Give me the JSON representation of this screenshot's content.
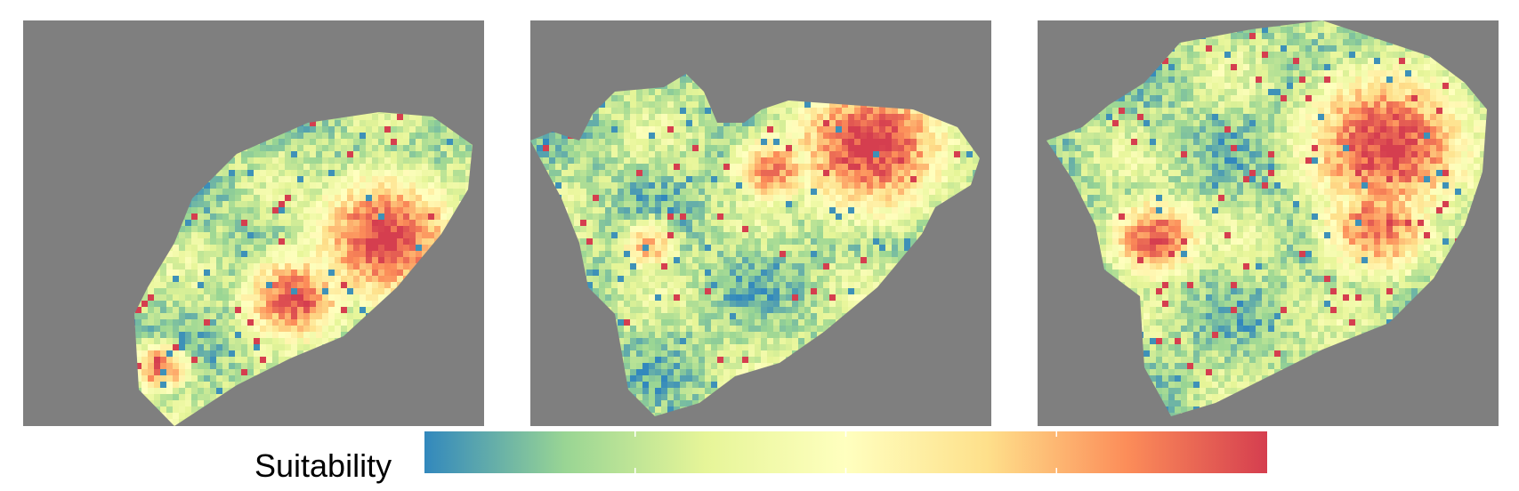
{
  "chart_data": {
    "type": "heatmap",
    "description_of_panels": [
      "map-1",
      "map-2",
      "map-3"
    ],
    "value_range": [
      0,
      1
    ],
    "background_color": "#7f7f7f",
    "legend": {
      "title": "Suitability",
      "placement": "bottom",
      "palette": [
        "#3288bd",
        "#99d594",
        "#e6f598",
        "#ffffbf",
        "#fee08b",
        "#fc8d59",
        "#d53e4f"
      ]
    },
    "panels": [
      {
        "low_suitability_fraction": 0.55,
        "high_suitability_fraction": 0.22,
        "hotspots": [
          {
            "x": 0.78,
            "y": 0.53,
            "r": 0.13,
            "level": 1.0
          },
          {
            "x": 0.58,
            "y": 0.68,
            "r": 0.09,
            "level": 0.95
          },
          {
            "x": 0.29,
            "y": 0.85,
            "r": 0.05,
            "level": 0.9
          }
        ]
      },
      {
        "low_suitability_fraction": 0.42,
        "high_suitability_fraction": 0.15,
        "hotspots": [
          {
            "x": 0.73,
            "y": 0.3,
            "r": 0.14,
            "level": 1.0
          },
          {
            "x": 0.52,
            "y": 0.36,
            "r": 0.07,
            "level": 0.85
          },
          {
            "x": 0.25,
            "y": 0.55,
            "r": 0.05,
            "level": 0.75
          }
        ]
      },
      {
        "low_suitability_fraction": 0.28,
        "high_suitability_fraction": 0.25,
        "hotspots": [
          {
            "x": 0.75,
            "y": 0.3,
            "r": 0.15,
            "level": 1.0
          },
          {
            "x": 0.25,
            "y": 0.53,
            "r": 0.08,
            "level": 0.95
          },
          {
            "x": 0.73,
            "y": 0.5,
            "r": 0.1,
            "level": 0.9
          }
        ]
      }
    ]
  }
}
